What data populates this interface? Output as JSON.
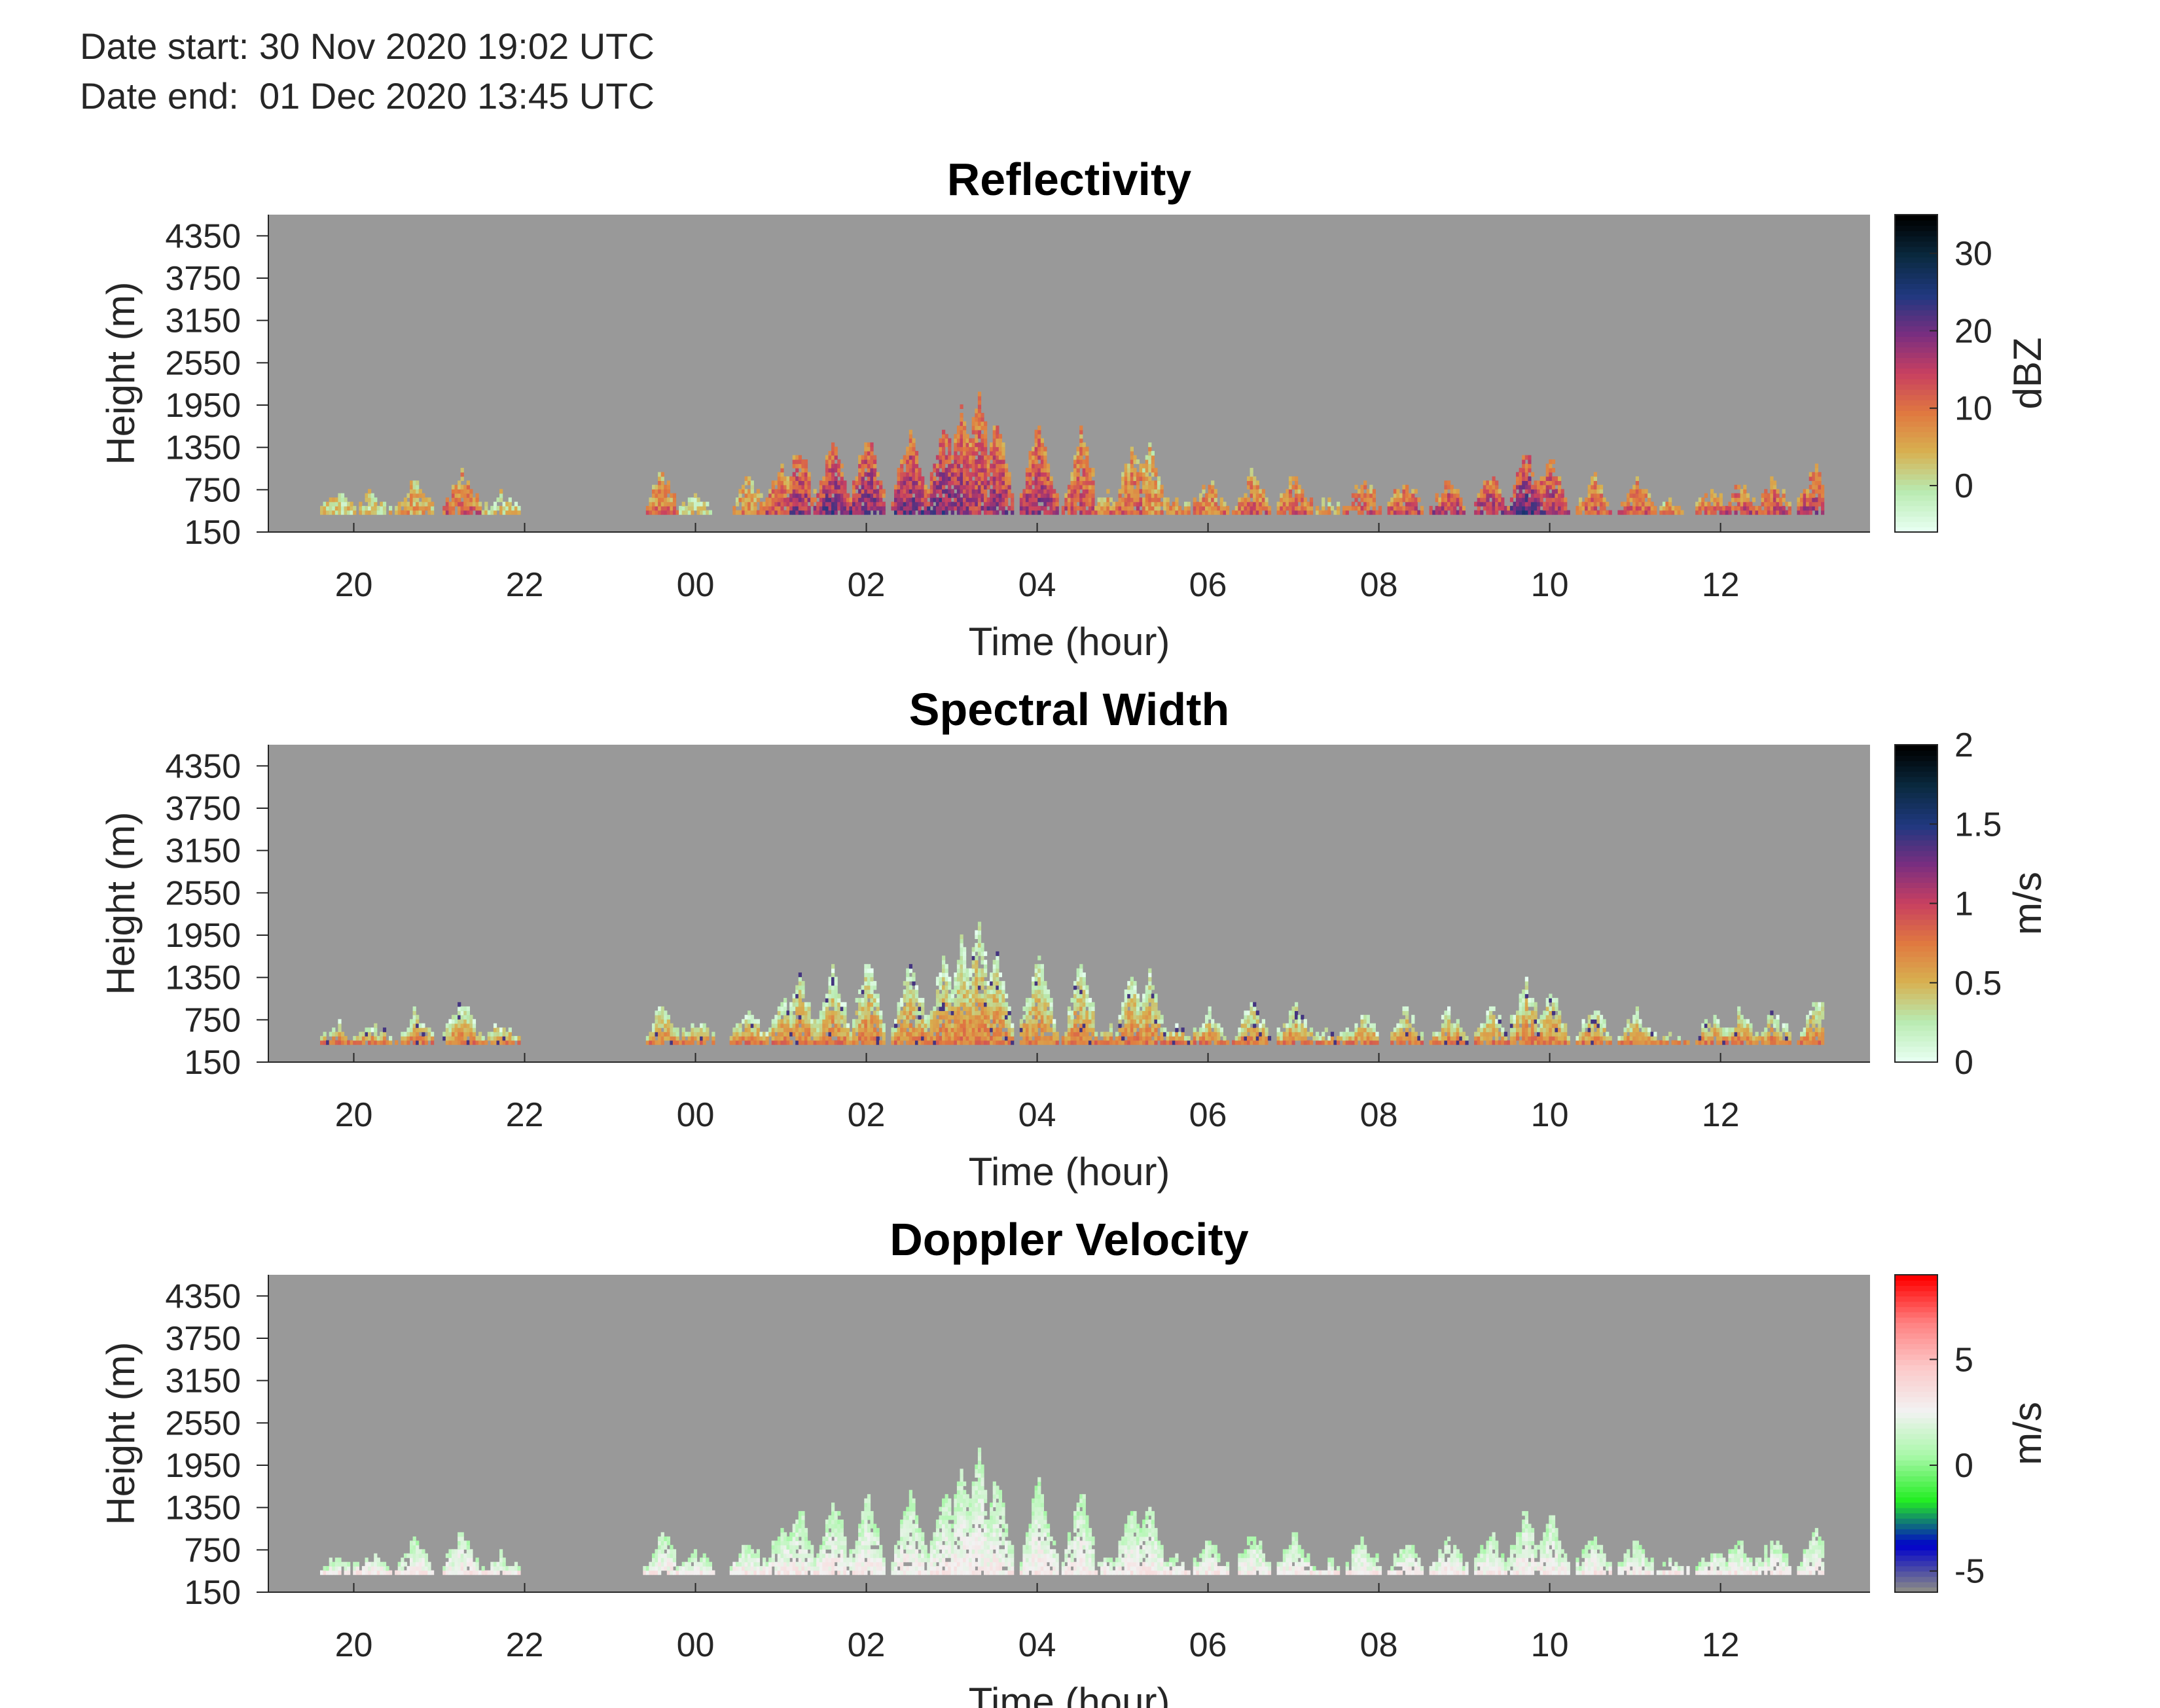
{
  "header": {
    "date_start": "Date start: 30 Nov 2020 19:02 UTC",
    "date_end": "Date end:  01 Dec 2020 13:45 UTC"
  },
  "chart_data": [
    {
      "type": "heatmap",
      "title": "Reflectivity",
      "xlabel": "Time (hour)",
      "ylabel": "Height (m)",
      "x_ticks": [
        "20",
        "22",
        "00",
        "02",
        "04",
        "06",
        "08",
        "10",
        "12"
      ],
      "x_tick_values": [
        20,
        22,
        24,
        26,
        28,
        30,
        32,
        34,
        36
      ],
      "xlim": [
        19.0,
        37.75
      ],
      "y_ticks": [
        "150",
        "750",
        "1350",
        "1950",
        "2550",
        "3150",
        "3750",
        "4350"
      ],
      "y_tick_values": [
        150,
        750,
        1350,
        1950,
        2550,
        3150,
        3750,
        4350
      ],
      "ylim": [
        150,
        4650
      ],
      "colorbar": {
        "label": "dBZ",
        "ticks": [
          "0",
          "10",
          "20",
          "30"
        ],
        "tick_values": [
          0,
          10,
          20,
          30
        ],
        "range": [
          -6,
          35
        ],
        "colormap": [
          "#e6fff0",
          "#b8eab0",
          "#d8b050",
          "#e07840",
          "#c84060",
          "#7a2e80",
          "#203880",
          "#0a2a40",
          "#000000"
        ]
      },
      "background": "#999999",
      "echo_top_profile": {
        "time_hour": [
          19.8,
          20.2,
          20.7,
          21.25,
          21.7,
          23.6,
          24.0,
          24.6,
          25.0,
          25.2,
          25.6,
          26.0,
          26.5,
          26.9,
          27.1,
          27.3,
          27.5,
          28.0,
          28.5,
          28.8,
          29.1,
          29.3,
          29.6,
          30.0,
          30.5,
          31.0,
          31.4,
          31.8,
          32.3,
          32.8,
          33.3,
          33.7,
          34.0,
          34.5,
          35.0,
          35.4,
          35.9,
          36.2,
          36.6,
          37.1
        ],
        "top_height_m": [
          650,
          650,
          850,
          1000,
          650,
          950,
          700,
          850,
          1050,
          1350,
          1450,
          1550,
          1600,
          1650,
          1900,
          2150,
          1750,
          1700,
          1550,
          650,
          1350,
          1350,
          650,
          850,
          950,
          950,
          550,
          850,
          850,
          850,
          950,
          1300,
          1200,
          900,
          850,
          550,
          750,
          850,
          850,
          1050
        ],
        "peak_dbz": [
          2,
          2,
          6,
          12,
          2,
          10,
          2,
          8,
          14,
          18,
          20,
          20,
          20,
          21,
          18,
          16,
          18,
          18,
          14,
          10,
          12,
          8,
          8,
          10,
          12,
          12,
          6,
          12,
          14,
          16,
          18,
          22,
          18,
          12,
          12,
          8,
          12,
          14,
          14,
          16
        ]
      }
    },
    {
      "type": "heatmap",
      "title": "Spectral Width",
      "xlabel": "Time (hour)",
      "ylabel": "Height (m)",
      "x_ticks": [
        "20",
        "22",
        "00",
        "02",
        "04",
        "06",
        "08",
        "10",
        "12"
      ],
      "x_tick_values": [
        20,
        22,
        24,
        26,
        28,
        30,
        32,
        34,
        36
      ],
      "xlim": [
        19.0,
        37.75
      ],
      "y_ticks": [
        "150",
        "750",
        "1350",
        "1950",
        "2550",
        "3150",
        "3750",
        "4350"
      ],
      "y_tick_values": [
        150,
        750,
        1350,
        1950,
        2550,
        3150,
        3750,
        4350
      ],
      "ylim": [
        150,
        4650
      ],
      "colorbar": {
        "label": "m/s",
        "ticks": [
          "0",
          "0.5",
          "1",
          "1.5",
          "2"
        ],
        "tick_values": [
          0,
          0.5,
          1,
          1.5,
          2
        ],
        "range": [
          0,
          2
        ],
        "colormap": [
          "#e6fff0",
          "#b8eab0",
          "#d8b050",
          "#e07840",
          "#c84060",
          "#7a2e80",
          "#203880",
          "#0a2a40",
          "#000000"
        ]
      },
      "background": "#999999",
      "typical_width_ms": {
        "cloud_upper": 0.1,
        "near_surface": 0.7,
        "max_observed": 1.4
      }
    },
    {
      "type": "heatmap",
      "title": "Doppler Velocity",
      "xlabel": "Time (hour)",
      "ylabel": "Height (m)",
      "x_ticks": [
        "20",
        "22",
        "00",
        "02",
        "04",
        "06",
        "08",
        "10",
        "12"
      ],
      "x_tick_values": [
        20,
        22,
        24,
        26,
        28,
        30,
        32,
        34,
        36
      ],
      "xlim": [
        19.0,
        37.75
      ],
      "y_ticks": [
        "150",
        "750",
        "1350",
        "1950",
        "2550",
        "3150",
        "3750",
        "4350"
      ],
      "y_tick_values": [
        150,
        750,
        1350,
        1950,
        2550,
        3150,
        3750,
        4350
      ],
      "ylim": [
        150,
        4650
      ],
      "colorbar": {
        "label": "m/s",
        "ticks": [
          "-5",
          "0",
          "5"
        ],
        "tick_values": [
          -5,
          0,
          5
        ],
        "range": [
          -6,
          9
        ],
        "colormap": [
          "#888888",
          "#0000cc",
          "#22ee22",
          "#a8f8a8",
          "#f2f2f2",
          "#fcc8c8",
          "#ff8080",
          "#ff0000"
        ]
      },
      "background": "#999999",
      "typical_velocity_ms": {
        "cloud_upper": 1.0,
        "near_surface": 3.0
      }
    }
  ]
}
